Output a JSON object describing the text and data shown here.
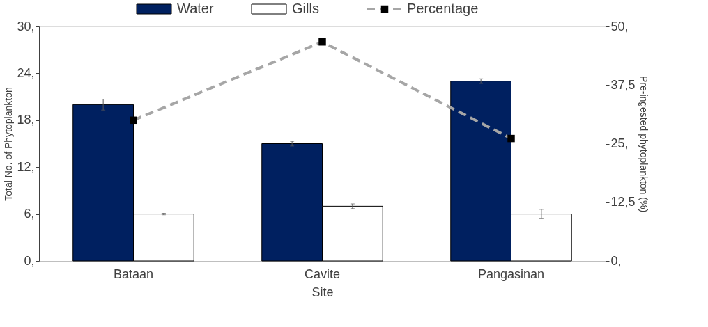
{
  "chart_data": {
    "type": "bar",
    "xlabel": "Site",
    "ylabel": "Total No. of Phytoplankton",
    "y2label": "Pre-ingested phytoplankton (%)",
    "categories": [
      "Bataan",
      "Cavite",
      "Pangasinan"
    ],
    "series": [
      {
        "name": "Water",
        "color": "#002060",
        "values": [
          20,
          15,
          23
        ],
        "errors": [
          0.7,
          0.3,
          0.3
        ]
      },
      {
        "name": "Gills",
        "color": "#ffffff",
        "values": [
          6,
          7,
          6
        ],
        "errors": [
          0.1,
          0.3,
          0.6
        ]
      },
      {
        "name": "Percentage",
        "type": "line",
        "axis": "y2",
        "color": "#a6a6a6",
        "marker": "square",
        "line_style": "dashed",
        "values": [
          30,
          46.7,
          26.1
        ]
      }
    ],
    "ylim": [
      0,
      30
    ],
    "yticks": [
      {
        "value": 0,
        "label": "0,"
      },
      {
        "value": 6,
        "label": "6,"
      },
      {
        "value": 12,
        "label": "12,"
      },
      {
        "value": 18,
        "label": "18,"
      },
      {
        "value": 24,
        "label": "24,"
      },
      {
        "value": 30,
        "label": "30,"
      }
    ],
    "y2lim": [
      0,
      50
    ],
    "y2ticks": [
      {
        "value": 0,
        "label": "0,"
      },
      {
        "value": 12.5,
        "label": "12,5"
      },
      {
        "value": 25,
        "label": "25,"
      },
      {
        "value": 37.5,
        "label": "37,5"
      },
      {
        "value": 50,
        "label": "50,"
      }
    ],
    "grid": false,
    "legend": "top"
  }
}
